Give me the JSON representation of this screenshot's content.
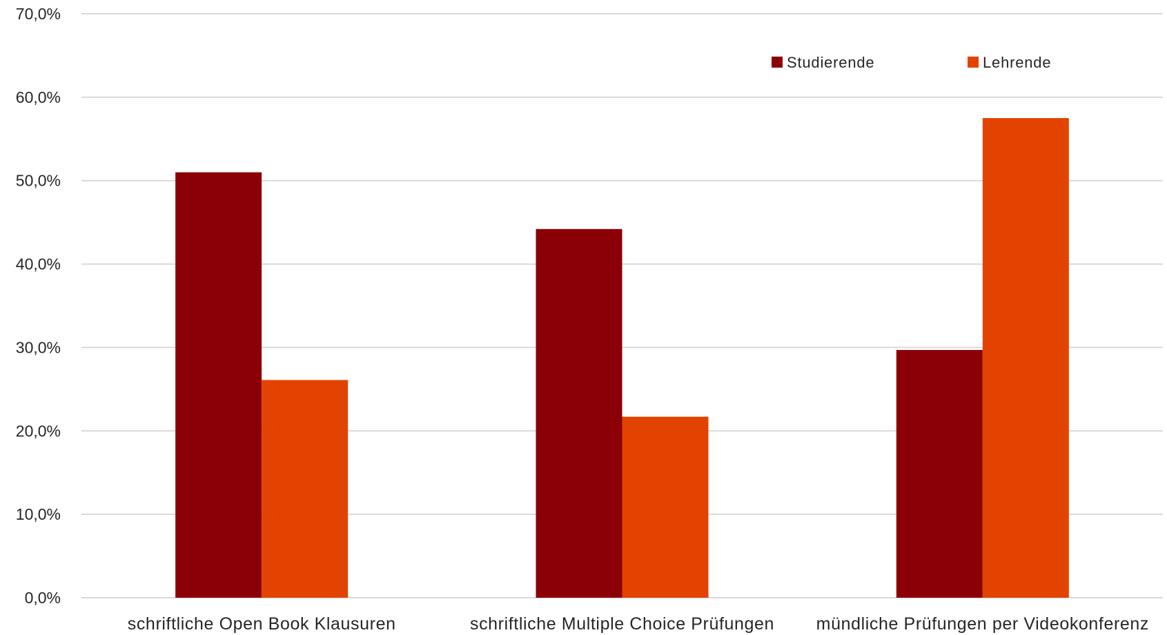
{
  "chart_data": {
    "type": "bar",
    "categories": [
      "schriftliche Open Book Klausuren",
      "schriftliche Multiple Choice Prüfungen",
      "mündliche Prüfungen per Videokonferenz"
    ],
    "series": [
      {
        "name": "Studierende",
        "color": "#8b0006",
        "values": [
          51.0,
          44.2,
          29.7
        ]
      },
      {
        "name": "Lehrende",
        "color": "#e34300",
        "values": [
          26.1,
          21.7,
          57.5
        ]
      }
    ],
    "y_ticks": [
      "0,0%",
      "10,0%",
      "20,0%",
      "30,0%",
      "40,0%",
      "50,0%",
      "60,0%",
      "70,0%"
    ],
    "ylim": [
      0,
      70
    ],
    "y_step": 10,
    "grid": true,
    "gridline_color": "#d9d9d9",
    "legend_position": "top-right"
  }
}
